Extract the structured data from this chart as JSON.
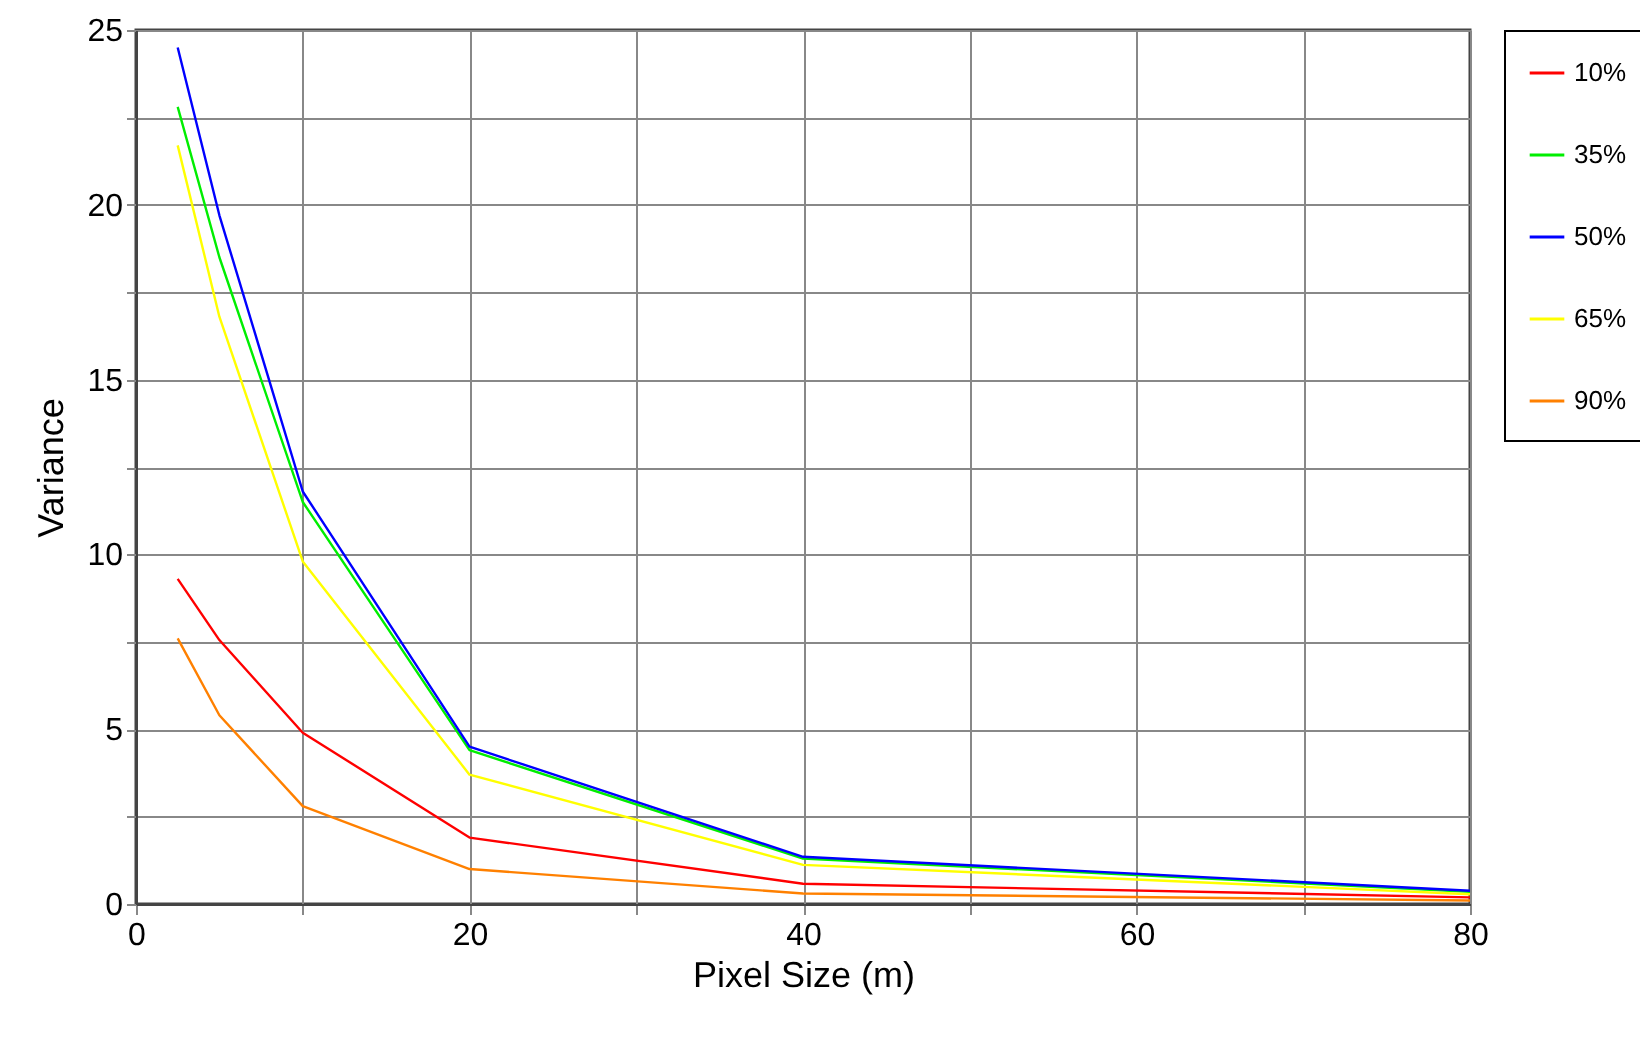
{
  "chart_data": {
    "type": "line",
    "xlabel": "Pixel Size (m)",
    "ylabel": "Variance",
    "x": [
      2.5,
      5,
      10,
      20,
      40,
      80
    ],
    "series": [
      {
        "name": "10%",
        "color": "#ff0000",
        "values": [
          9.3,
          7.55,
          4.9,
          1.9,
          0.58,
          0.19
        ]
      },
      {
        "name": "35%",
        "color": "#00ee00",
        "values": [
          22.8,
          18.5,
          11.5,
          4.4,
          1.3,
          0.35
        ]
      },
      {
        "name": "50%",
        "color": "#0000ff",
        "values": [
          24.5,
          19.7,
          11.8,
          4.5,
          1.35,
          0.38
        ]
      },
      {
        "name": "65%",
        "color": "#ffff00",
        "values": [
          21.7,
          16.8,
          9.8,
          3.7,
          1.12,
          0.28
        ]
      },
      {
        "name": "90%",
        "color": "#ff8000",
        "values": [
          7.6,
          5.4,
          2.8,
          1.0,
          0.3,
          0.1
        ]
      }
    ],
    "xlim": [
      0,
      80
    ],
    "ylim": [
      0,
      25
    ],
    "xticks": [
      0,
      {
        "value": 10,
        "label": null
      },
      20,
      {
        "value": 30,
        "label": null
      },
      40,
      {
        "value": 50,
        "label": null
      },
      60,
      {
        "value": 70,
        "label": null
      },
      80
    ],
    "yticks": [
      0,
      {
        "value": 2.5,
        "label": null
      },
      5,
      {
        "value": 7.5,
        "label": null
      },
      10,
      {
        "value": 12.5,
        "label": null
      },
      15,
      {
        "value": 17.5,
        "label": null
      },
      20,
      {
        "value": 22.5,
        "label": null
      },
      25
    ],
    "grid": true,
    "legend": "right",
    "marker": "none",
    "line_style": "solid"
  }
}
